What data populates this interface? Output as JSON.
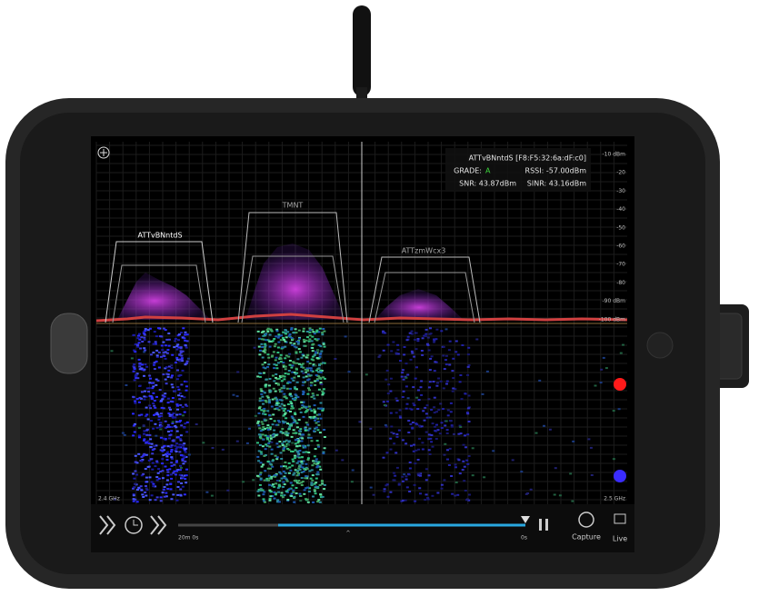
{
  "device": {
    "screen": {
      "wifi_info": {
        "ssid_bssid": "ATTvBNntdS [F8:F5:32:6a:dF:c0]",
        "grade_label": "GRADE:",
        "grade": "A",
        "rssi": "RSSI: -57.00dBm",
        "snr": "SNR: 43.87dBm",
        "sinr": "SINR: 43.16dBm"
      },
      "dbm_scale": [
        "-10 dBm",
        "-20",
        "-30",
        "-40",
        "-50",
        "-60",
        "-70",
        "-80",
        "-90 dBm",
        "-100 dBm"
      ],
      "networks": [
        "ATTvBNntdS",
        "TMNT",
        "ATTzmWcx3"
      ],
      "freq_start": "2.4 GHz",
      "freq_end": "2.5 GHz",
      "timeline": {
        "start": "20m 0s",
        "end": "0s"
      },
      "buttons": {
        "capture": "Capture",
        "live": "Live"
      }
    }
  }
}
